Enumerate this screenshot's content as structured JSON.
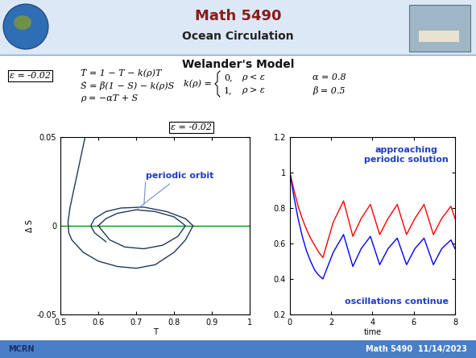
{
  "header": {
    "title": "Math 5490",
    "subtitle": "Ocean Circulation"
  },
  "section_title": "Welander's Model",
  "boxed_labels": [
    "ε = -0.02",
    "ε = -0.02"
  ],
  "equations": [
    "Ṫ = 1 − T − k(ρ)T",
    "Ṡ = β(1 − S) − k(ρ)S",
    "ρ = −αT + S"
  ],
  "k_definition": {
    "lhs": "k(ρ) =",
    "cases": [
      [
        "0,",
        "ρ < ε"
      ],
      [
        "1,",
        "ρ > ε"
      ]
    ]
  },
  "parameters": [
    "α = 0.8",
    "β = 0.5"
  ],
  "chart_data": [
    {
      "type": "line",
      "x_label": "T",
      "y_label": "Δ S",
      "xlim": [
        0.5,
        1
      ],
      "xticks": [
        0.5,
        0.6,
        0.7,
        0.8,
        0.9,
        1
      ],
      "ylim": [
        -0.05,
        0.05
      ],
      "yticks": [
        -0.05,
        0,
        0.05
      ],
      "grid": false,
      "annotations": [
        {
          "text": "periodic orbit"
        }
      ],
      "series": [
        {
          "color": "#009900",
          "line_style": "solid",
          "x": [
            0.5,
            1
          ],
          "values": [
            0,
            0
          ]
        },
        {
          "color": "#1c3b5a",
          "line_style": "solid",
          "x": [
            0.565,
            0.55,
            0.535,
            0.525,
            0.52,
            0.522,
            0.53,
            0.56,
            0.6,
            0.65,
            0.7,
            0.75,
            0.8,
            0.83,
            0.85,
            0.83,
            0.78,
            0.72,
            0.66,
            0.62,
            0.59,
            0.58,
            0.59,
            0.62
          ],
          "values": [
            0.05,
            0.035,
            0.02,
            0.01,
            0.002,
            -0.004,
            -0.008,
            -0.015,
            -0.02,
            -0.023,
            -0.024,
            -0.022,
            -0.015,
            -0.008,
            0.0,
            0.004,
            0.008,
            0.0105,
            0.01,
            0.008,
            0.004,
            0.0,
            -0.004,
            -0.009
          ]
        },
        {
          "color": "#1c3b5a",
          "line_style": "solid",
          "x": [
            0.6,
            0.63,
            0.67,
            0.72,
            0.77,
            0.81,
            0.83,
            0.8,
            0.75,
            0.7,
            0.65,
            0.62,
            0.6
          ],
          "values": [
            0,
            -0.008,
            -0.012,
            -0.013,
            -0.011,
            -0.006,
            0,
            0.005,
            0.008,
            0.009,
            0.007,
            0.004,
            0
          ]
        }
      ]
    },
    {
      "type": "line",
      "x_label": "time",
      "xlim": [
        0,
        8
      ],
      "xticks": [
        0,
        2,
        4,
        6,
        8
      ],
      "ylim": [
        0.2,
        1.2
      ],
      "yticks": [
        0.2,
        0.4,
        0.6,
        0.8,
        1,
        1.2
      ],
      "grid": false,
      "annotations": [
        {
          "text": "approaching\nperiodic solution"
        },
        {
          "text": "oscillations continue"
        }
      ],
      "x": [
        0,
        0.2,
        0.4,
        0.6,
        0.8,
        1.0,
        1.2,
        1.4,
        1.6,
        2.1,
        2.6,
        3.05,
        3.45,
        3.9,
        4.35,
        4.75,
        5.2,
        5.65,
        6.05,
        6.5,
        6.95,
        7.35,
        7.8,
        8.0
      ],
      "series": [
        {
          "color": "#ff0000",
          "line_style": "solid",
          "values": [
            1.0,
            0.9,
            0.81,
            0.74,
            0.68,
            0.63,
            0.59,
            0.55,
            0.52,
            0.72,
            0.84,
            0.64,
            0.74,
            0.82,
            0.65,
            0.74,
            0.82,
            0.65,
            0.74,
            0.82,
            0.65,
            0.74,
            0.81,
            0.74
          ]
        },
        {
          "color": "#0000ff",
          "line_style": "solid",
          "values": [
            1.0,
            0.86,
            0.74,
            0.64,
            0.56,
            0.5,
            0.45,
            0.42,
            0.4,
            0.55,
            0.65,
            0.47,
            0.57,
            0.64,
            0.48,
            0.57,
            0.63,
            0.48,
            0.57,
            0.63,
            0.48,
            0.57,
            0.62,
            0.57
          ]
        }
      ]
    }
  ],
  "footer": {
    "logo": "MCRN",
    "text": "Math 5490  11/14/2023"
  }
}
